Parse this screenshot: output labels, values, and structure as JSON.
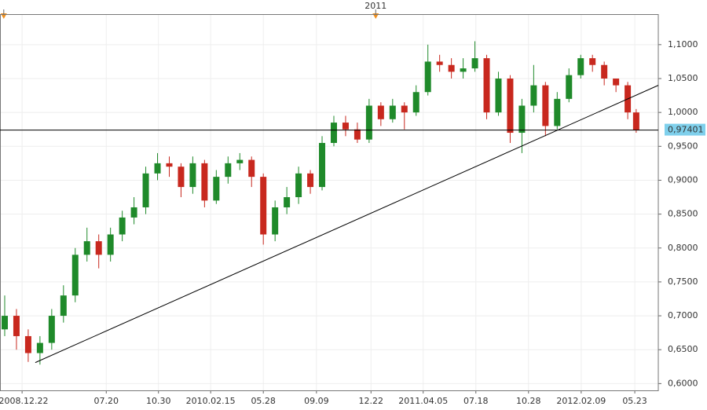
{
  "chart_data": {
    "type": "candlestick",
    "xlim": [
      0,
      140
    ],
    "ylim": [
      0.59,
      1.145
    ],
    "grid": true,
    "up_color": "#1f8a2a",
    "down_color": "#c8281e",
    "yticks": [
      {
        "value": 0.6,
        "label": "0,6000"
      },
      {
        "value": 0.65,
        "label": "0,6500"
      },
      {
        "value": 0.7,
        "label": "0,7000"
      },
      {
        "value": 0.75,
        "label": "0,7500"
      },
      {
        "value": 0.8,
        "label": "0,8000"
      },
      {
        "value": 0.85,
        "label": "0,8500"
      },
      {
        "value": 0.9,
        "label": "0,9000"
      },
      {
        "value": 0.95,
        "label": "0,9500"
      },
      {
        "value": 1.0,
        "label": "1,0000"
      },
      {
        "value": 1.05,
        "label": "1,0500"
      },
      {
        "value": 1.1,
        "label": "1,1000"
      }
    ],
    "xticks": [
      {
        "value": 4.7,
        "label": "2008.12.22"
      },
      {
        "value": 22.6,
        "label": "07.20"
      },
      {
        "value": 33.7,
        "label": "10.30"
      },
      {
        "value": 44.8,
        "label": "2010.02.15"
      },
      {
        "value": 56.0,
        "label": "05.28"
      },
      {
        "value": 67.3,
        "label": "09.09"
      },
      {
        "value": 78.9,
        "label": "12.22"
      },
      {
        "value": 90.0,
        "label": "2011.04.05"
      },
      {
        "value": 101.2,
        "label": "07.18"
      },
      {
        "value": 112.4,
        "label": "10.28"
      },
      {
        "value": 123.6,
        "label": "2012.02.09"
      },
      {
        "value": 135.0,
        "label": "05.23"
      }
    ],
    "top_marks": [
      {
        "value": 0.8,
        "label": null
      },
      {
        "value": 79.9,
        "label": "2011"
      }
    ],
    "x": [
      1,
      3.5,
      6,
      8.5,
      11,
      13.5,
      16,
      18.5,
      21,
      23.5,
      26,
      28.5,
      31,
      33.5,
      36,
      38.5,
      41,
      43.5,
      46,
      48.5,
      51,
      53.5,
      56,
      58.5,
      61,
      63.5,
      66,
      68.5,
      71,
      73.5,
      76,
      78.5,
      81,
      83.5,
      86,
      88.5,
      91,
      93.5,
      96,
      98.5,
      101,
      103.5,
      106,
      108.5,
      111,
      113.5,
      116,
      118.5,
      121,
      123.5,
      126,
      128.5,
      131,
      133.5,
      135.3
    ],
    "open": [
      0.68,
      0.7,
      0.67,
      0.645,
      0.66,
      0.7,
      0.73,
      0.79,
      0.81,
      0.79,
      0.82,
      0.845,
      0.86,
      0.91,
      0.925,
      0.92,
      0.89,
      0.925,
      0.87,
      0.905,
      0.925,
      0.93,
      0.905,
      0.82,
      0.86,
      0.875,
      0.91,
      0.89,
      0.955,
      0.985,
      0.975,
      0.96,
      1.01,
      0.99,
      1.01,
      1.0,
      1.03,
      1.075,
      1.07,
      1.06,
      1.065,
      1.08,
      1.0,
      1.05,
      0.97,
      1.01,
      1.04,
      0.98,
      1.02,
      1.055,
      1.08,
      1.07,
      1.05,
      1.04,
      1.0
    ],
    "high": [
      0.73,
      0.71,
      0.68,
      0.67,
      0.71,
      0.745,
      0.8,
      0.83,
      0.82,
      0.83,
      0.855,
      0.875,
      0.92,
      0.94,
      0.935,
      0.925,
      0.935,
      0.93,
      0.915,
      0.935,
      0.94,
      0.935,
      0.91,
      0.87,
      0.89,
      0.92,
      0.915,
      0.965,
      0.995,
      0.995,
      0.985,
      1.02,
      1.015,
      1.02,
      1.015,
      1.04,
      1.1,
      1.085,
      1.08,
      1.08,
      1.105,
      1.085,
      1.06,
      1.055,
      1.02,
      1.07,
      1.045,
      1.03,
      1.065,
      1.085,
      1.085,
      1.075,
      1.05,
      1.045,
      1.005
    ],
    "low": [
      0.67,
      0.65,
      0.632,
      0.628,
      0.65,
      0.69,
      0.72,
      0.78,
      0.77,
      0.78,
      0.81,
      0.835,
      0.85,
      0.9,
      0.905,
      0.875,
      0.88,
      0.86,
      0.865,
      0.895,
      0.915,
      0.89,
      0.805,
      0.81,
      0.85,
      0.865,
      0.88,
      0.885,
      0.95,
      0.965,
      0.955,
      0.955,
      0.98,
      0.985,
      0.975,
      0.995,
      1.025,
      1.06,
      1.05,
      1.05,
      1.06,
      0.99,
      0.995,
      0.955,
      0.94,
      1.0,
      0.965,
      0.975,
      1.015,
      1.05,
      1.06,
      1.04,
      1.03,
      0.99,
      0.97
    ],
    "close": [
      0.7,
      0.67,
      0.645,
      0.66,
      0.7,
      0.73,
      0.79,
      0.81,
      0.79,
      0.82,
      0.845,
      0.86,
      0.91,
      0.925,
      0.92,
      0.89,
      0.925,
      0.87,
      0.905,
      0.925,
      0.93,
      0.905,
      0.82,
      0.86,
      0.875,
      0.91,
      0.89,
      0.955,
      0.985,
      0.975,
      0.96,
      1.01,
      0.99,
      1.01,
      1.0,
      1.03,
      1.075,
      1.07,
      1.06,
      1.065,
      1.08,
      1.0,
      1.05,
      0.97,
      1.01,
      1.04,
      0.98,
      1.02,
      1.055,
      1.08,
      1.07,
      1.05,
      1.04,
      1.0,
      0.974
    ],
    "trendline": {
      "x": [
        7.5,
        140
      ],
      "y": [
        0.631,
        1.04
      ]
    },
    "price_line": {
      "value": 0.97401,
      "label": "0,97401"
    }
  }
}
